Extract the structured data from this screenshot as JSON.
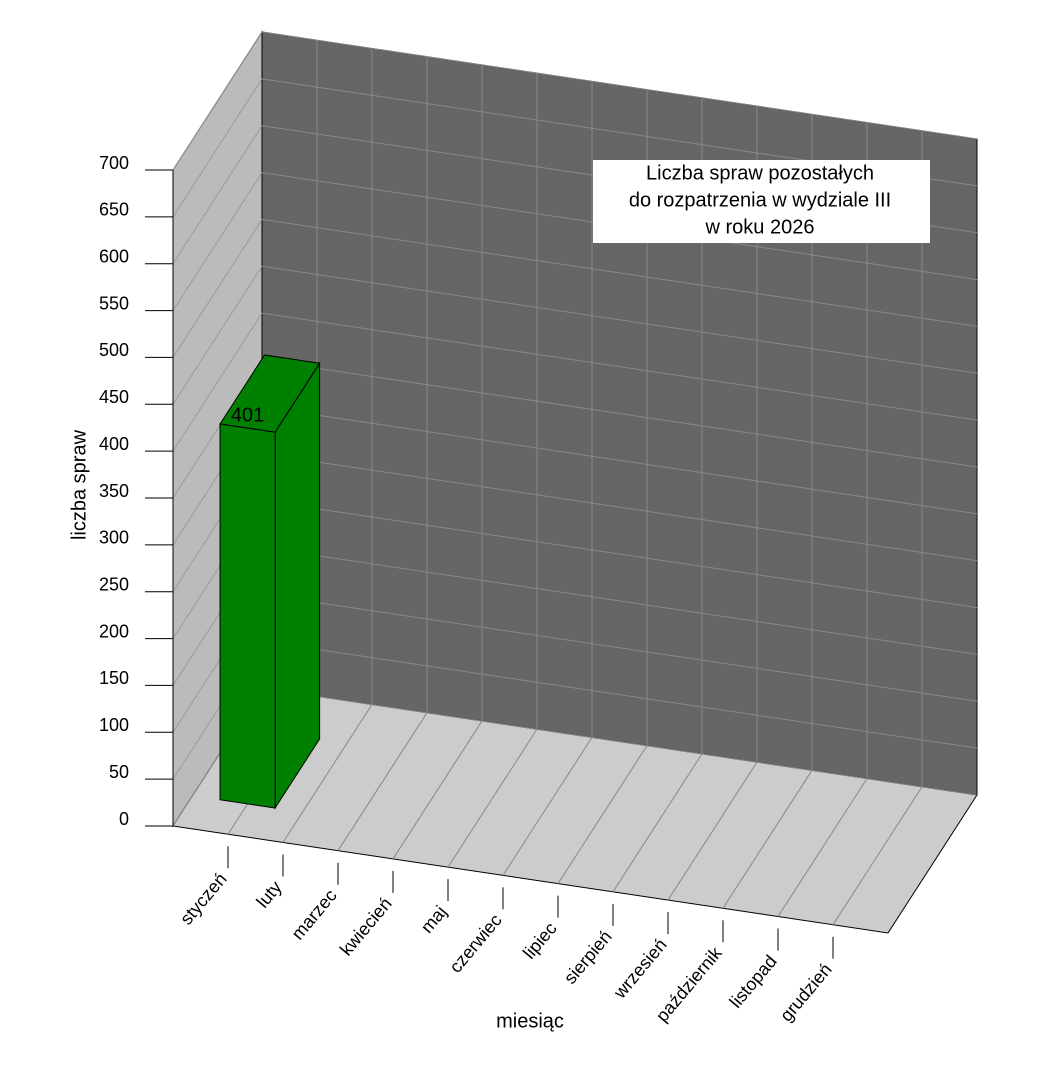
{
  "chart_data": {
    "type": "bar3d",
    "title": [
      "Liczba spraw pozostałych",
      "do rozpatrzenia w  wydziale III",
      "w roku 2026"
    ],
    "xlabel": "miesiąc",
    "ylabel": "liczba spraw",
    "categories": [
      "styczeń",
      "luty",
      "marzec",
      "kwiecień",
      "maj",
      "czerwiec",
      "lipiec",
      "sierpień",
      "wrzesień",
      "październik",
      "listopad",
      "grudzień"
    ],
    "values": [
      401,
      null,
      null,
      null,
      null,
      null,
      null,
      null,
      null,
      null,
      null,
      null
    ],
    "color": "#008000",
    "ylim": [
      0,
      700
    ],
    "yticks": [
      0,
      50,
      100,
      150,
      200,
      250,
      300,
      350,
      400,
      450,
      500,
      550,
      600,
      650,
      700
    ],
    "grid": true
  }
}
